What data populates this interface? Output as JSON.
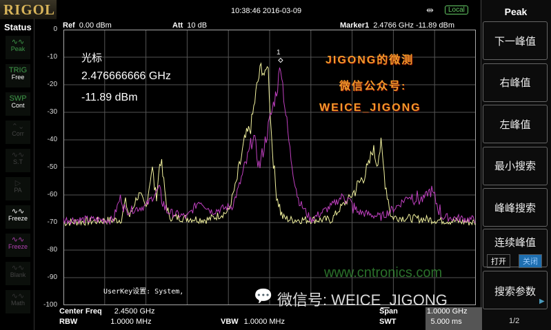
{
  "logo": "RIGOL",
  "status": {
    "title": "Status",
    "items": [
      {
        "icon": "peak-wave-icon",
        "glyph": "∿∿",
        "label": "Peak",
        "color": "#3f9a4a"
      },
      {
        "icon": "trig-icon",
        "glyph": "TRIG",
        "label": "Free",
        "color": "#3f9a4a"
      },
      {
        "icon": "sweep-icon",
        "glyph": "SWP",
        "label": "Cont",
        "color": "#3f9a4a"
      },
      {
        "icon": "corr-icon",
        "glyph": "⌃⌄",
        "label": "Corr",
        "color": "#333"
      },
      {
        "icon": "st-icon",
        "glyph": "∿∿",
        "label": "S.T",
        "color": "#333"
      },
      {
        "icon": "pa-icon",
        "glyph": "▷",
        "label": "PA",
        "color": "#333"
      },
      {
        "icon": "freeze-wave-icon",
        "glyph": "∿∿",
        "label": "Freeze",
        "color": "#ffffff"
      },
      {
        "icon": "freeze-wave-icon",
        "glyph": "∿∿",
        "label": "Freeze",
        "color": "#b040b0"
      },
      {
        "icon": "blank-wave-icon",
        "glyph": "∿∿",
        "label": "Blank",
        "color": "#333"
      },
      {
        "icon": "math-wave-icon",
        "glyph": "∿∿",
        "label": "Math",
        "color": "#333"
      }
    ]
  },
  "topbar": {
    "datetime": "10:38:46 2016-03-09",
    "usb_icon": "usb-icon",
    "local": "Local"
  },
  "header": {
    "ref_label": "Ref",
    "ref": "0.00 dBm",
    "att_label": "Att",
    "att": "10 dB",
    "marker_label": "Marker1",
    "marker_freq": "2.4766 GHz",
    "marker_level": "-11.89 dBm"
  },
  "overlay": {
    "marker_title": "光标",
    "marker_freq": "2.476666666 GHz",
    "marker_level": "-11.89 dBm",
    "marker_number": "1",
    "userkey": "UserKey设置:  System,"
  },
  "watermark": {
    "line1": "JIGONG的微测",
    "line2": "微信公众号:",
    "line3": "WEICE_JIGONG",
    "bottom": "微信号: WEICE_JIGONG",
    "site": "www.cntronics.com"
  },
  "footer": {
    "center_label": "Center Freq",
    "center": "2.4500 GHz",
    "rbw_label": "RBW",
    "rbw": "1.0000 MHz",
    "vbw_label": "VBW",
    "vbw": "1.0000 MHz",
    "span_label": "Span",
    "span": "1.0000 GHz",
    "swt_label": "SWT",
    "swt": "5.000 ms"
  },
  "menu": {
    "title": "Peak",
    "buttons": [
      "下一峰值",
      "右峰值",
      "左峰值",
      "最小搜索",
      "峰峰搜索"
    ],
    "continuous": "连续峰值",
    "on": "打开",
    "off": "关闭",
    "search_params": "搜索参数",
    "page": "1/2"
  },
  "colors": {
    "trace1": "#f4f4a0",
    "trace2": "#c040c0",
    "grid": "#555555",
    "accent": "#1f6fb0"
  },
  "chart_data": {
    "type": "line",
    "xlim": [
      1.95,
      2.95
    ],
    "xunit": "GHz",
    "ylim": [
      -100,
      0
    ],
    "yunit": "dBm",
    "yticks": [
      "0",
      "-10",
      "-20",
      "-30",
      "-40",
      "-50",
      "-60",
      "-70",
      "-80",
      "-90",
      "-100"
    ],
    "grid": true,
    "series": [
      {
        "color": "#f4f4a0",
        "points": [
          [
            1.95,
            -70
          ],
          [
            2.09,
            -69
          ],
          [
            2.1,
            -62
          ],
          [
            2.11,
            -68
          ],
          [
            2.13,
            -60
          ],
          [
            2.15,
            -65
          ],
          [
            2.165,
            -50
          ],
          [
            2.175,
            -62
          ],
          [
            2.185,
            -46
          ],
          [
            2.195,
            -58
          ],
          [
            2.205,
            -68
          ],
          [
            2.3,
            -69
          ],
          [
            2.35,
            -66
          ],
          [
            2.37,
            -55
          ],
          [
            2.39,
            -40
          ],
          [
            2.405,
            -35
          ],
          [
            2.42,
            -20
          ],
          [
            2.43,
            -13
          ],
          [
            2.44,
            -18
          ],
          [
            2.445,
            -10
          ],
          [
            2.455,
            -40
          ],
          [
            2.465,
            -58
          ],
          [
            2.48,
            -68
          ],
          [
            2.5,
            -69
          ],
          [
            2.6,
            -69
          ],
          [
            2.62,
            -65
          ],
          [
            2.65,
            -60
          ],
          [
            2.67,
            -55
          ],
          [
            2.69,
            -50
          ],
          [
            2.7,
            -43
          ],
          [
            2.71,
            -48
          ],
          [
            2.72,
            -42
          ],
          [
            2.73,
            -55
          ],
          [
            2.745,
            -68
          ],
          [
            2.95,
            -70
          ]
        ]
      },
      {
        "color": "#c040c0",
        "points": [
          [
            1.95,
            -69
          ],
          [
            2.07,
            -69
          ],
          [
            2.09,
            -60
          ],
          [
            2.1,
            -66
          ],
          [
            2.15,
            -64
          ],
          [
            2.18,
            -58
          ],
          [
            2.2,
            -66
          ],
          [
            2.25,
            -68
          ],
          [
            2.28,
            -62
          ],
          [
            2.31,
            -66
          ],
          [
            2.36,
            -64
          ],
          [
            2.38,
            -55
          ],
          [
            2.4,
            -45
          ],
          [
            2.41,
            -38
          ],
          [
            2.425,
            -50
          ],
          [
            2.44,
            -40
          ],
          [
            2.455,
            -30
          ],
          [
            2.47,
            -20
          ],
          [
            2.4766,
            -11.89
          ],
          [
            2.485,
            -25
          ],
          [
            2.5,
            -45
          ],
          [
            2.52,
            -62
          ],
          [
            2.55,
            -69
          ],
          [
            2.6,
            -64
          ],
          [
            2.63,
            -60
          ],
          [
            2.66,
            -66
          ],
          [
            2.72,
            -68
          ],
          [
            2.76,
            -64
          ],
          [
            2.79,
            -60
          ],
          [
            2.82,
            -62
          ],
          [
            2.84,
            -58
          ],
          [
            2.87,
            -68
          ],
          [
            2.95,
            -69
          ]
        ]
      }
    ],
    "marker": {
      "x": 2.4766,
      "y": -11.89
    }
  }
}
